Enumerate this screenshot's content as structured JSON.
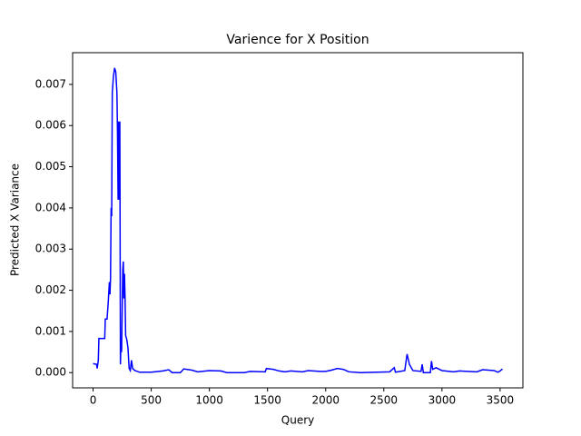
{
  "chart_data": {
    "type": "line",
    "title": "Varience for X Position",
    "xlabel": "Query",
    "ylabel": "Predicted X Variance",
    "x": [
      0,
      30,
      35,
      45,
      50,
      100,
      105,
      120,
      130,
      140,
      145,
      150,
      155,
      160,
      165,
      175,
      185,
      195,
      205,
      210,
      215,
      220,
      225,
      230,
      235,
      240,
      245,
      255,
      260,
      265,
      270,
      275,
      280,
      290,
      300,
      310,
      320,
      330,
      340,
      360,
      400,
      500,
      600,
      650,
      680,
      750,
      780,
      850,
      900,
      1000,
      1100,
      1150,
      1300,
      1350,
      1480,
      1490,
      1550,
      1600,
      1650,
      1700,
      1800,
      1850,
      1950,
      2000,
      2050,
      2100,
      2150,
      2200,
      2300,
      2550,
      2590,
      2600,
      2680,
      2700,
      2720,
      2750,
      2820,
      2830,
      2840,
      2900,
      2910,
      2920,
      2950,
      3000,
      3100,
      3150,
      3300,
      3350,
      3450,
      3480,
      3500,
      3520
    ],
    "series": [
      {
        "color": "#0000ff",
        "values": [
          0.00022,
          0.0002,
          0.0001,
          0.0003,
          0.00083,
          0.00083,
          0.0013,
          0.0013,
          0.0017,
          0.0022,
          0.0019,
          0.0023,
          0.004,
          0.0038,
          0.0068,
          0.0072,
          0.0074,
          0.0073,
          0.0068,
          0.0058,
          0.0042,
          0.0061,
          0.0042,
          0.0061,
          0.0002,
          0.0008,
          0.0005,
          0.0025,
          0.0027,
          0.0018,
          0.0024,
          0.0018,
          0.0009,
          0.0008,
          0.0006,
          0.0001,
          5e-05,
          0.0003,
          0.0001,
          5e-05,
          1e-05,
          1e-05,
          4e-05,
          7e-05,
          0.0,
          0.0,
          9e-05,
          6e-05,
          2e-05,
          5e-05,
          4e-05,
          0.0,
          0.0,
          3e-05,
          2e-05,
          0.0001,
          8e-05,
          4e-05,
          2e-05,
          4e-05,
          2e-05,
          5e-05,
          3e-05,
          3e-05,
          6e-05,
          0.0001,
          8e-05,
          2e-05,
          0.0,
          2e-05,
          0.00012,
          1e-05,
          5e-05,
          0.00045,
          0.0002,
          5e-05,
          3e-05,
          0.0002,
          0.0,
          0.0,
          0.00028,
          8e-05,
          0.00012,
          5e-05,
          2e-05,
          4e-05,
          2e-05,
          7e-05,
          5e-05,
          1e-05,
          4e-05,
          9e-05
        ]
      }
    ],
    "xlim": [
      -176,
      3696
    ],
    "xticks": [
      0,
      500,
      1000,
      1500,
      2000,
      2500,
      3000,
      3500
    ],
    "ylim": [
      -0.00037,
      0.00777
    ],
    "yticks": [
      {
        "value": 0,
        "label": "0.000"
      },
      {
        "value": 0.001,
        "label": "0.001"
      },
      {
        "value": 0.002,
        "label": "0.002"
      },
      {
        "value": 0.003,
        "label": "0.003"
      },
      {
        "value": 0.004,
        "label": "0.004"
      },
      {
        "value": 0.005,
        "label": "0.005"
      },
      {
        "value": 0.006,
        "label": "0.006"
      },
      {
        "value": 0.007,
        "label": "0.007"
      }
    ]
  }
}
